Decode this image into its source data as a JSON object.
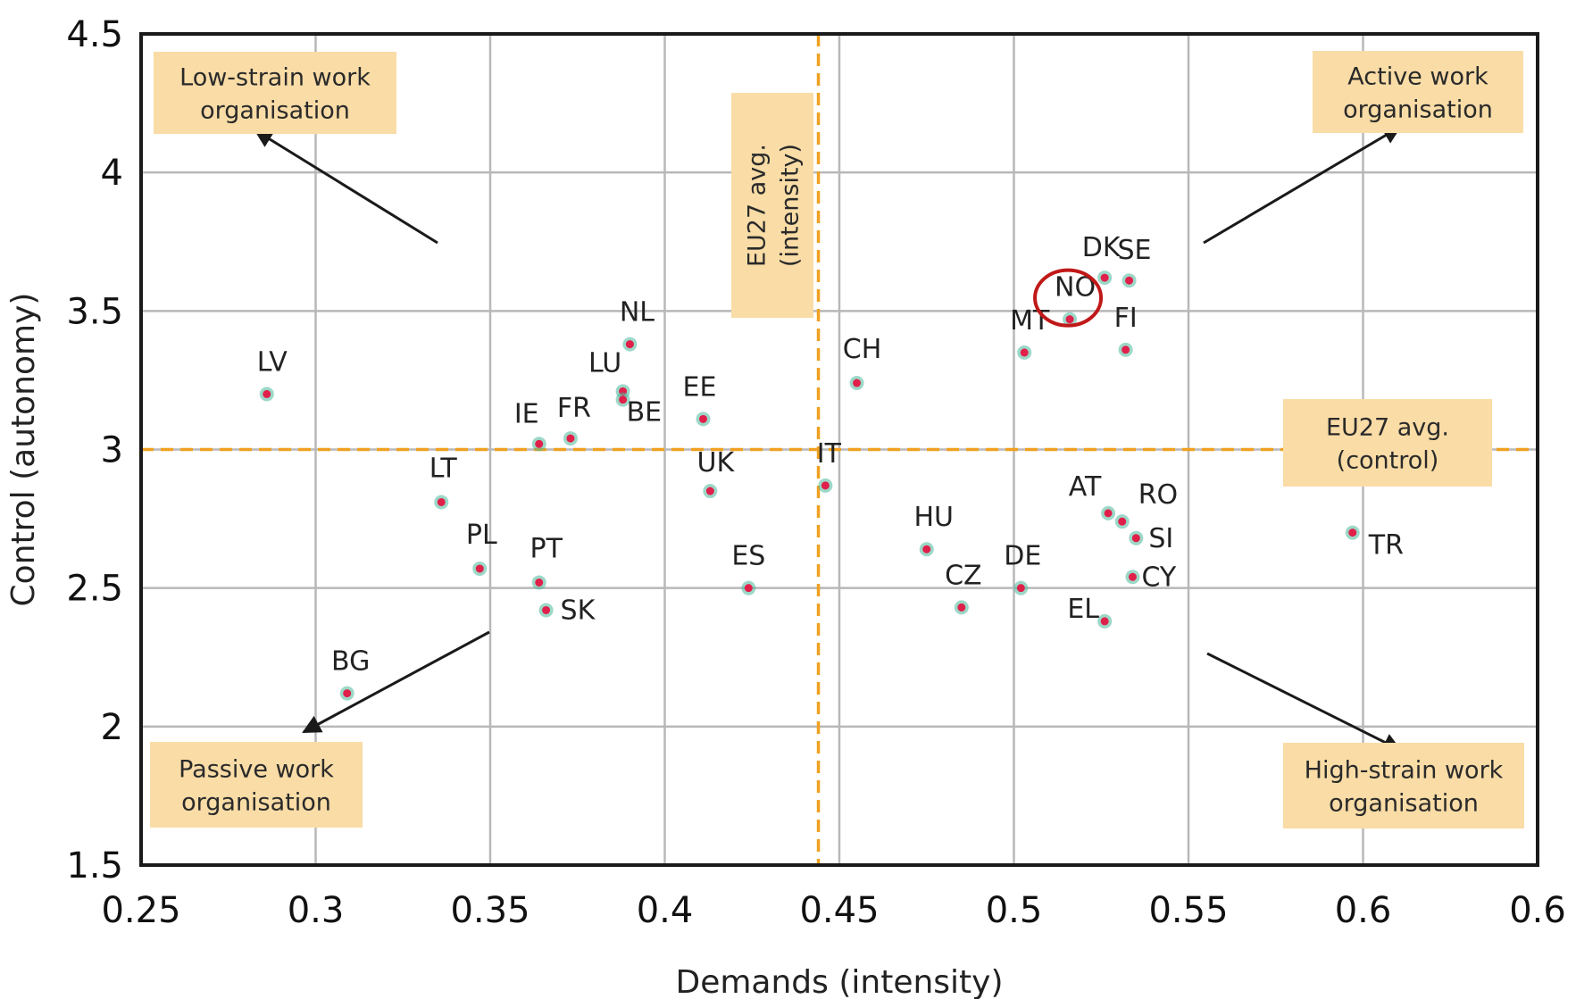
{
  "chart_data": {
    "type": "scatter",
    "xlabel": "Demands (intensity)",
    "ylabel": "Control (autonomy)",
    "xlim": [
      0.25,
      0.65
    ],
    "ylim": [
      1.5,
      4.5
    ],
    "x_ticks": [
      "0.25",
      "0.3",
      "0.35",
      "0.4",
      "0.45",
      "0.5",
      "0.55",
      "0.6",
      "0.6"
    ],
    "y_ticks": [
      "1.5",
      "2",
      "2.5",
      "3",
      "3.5",
      "4",
      "4.5"
    ],
    "grid": true,
    "points": [
      {
        "label": "LV",
        "x": 0.286,
        "y": 3.2
      },
      {
        "label": "BG",
        "x": 0.309,
        "y": 2.12
      },
      {
        "label": "LT",
        "x": 0.336,
        "y": 2.81
      },
      {
        "label": "PL",
        "x": 0.347,
        "y": 2.57
      },
      {
        "label": "IE",
        "x": 0.364,
        "y": 3.02
      },
      {
        "label": "PT",
        "x": 0.364,
        "y": 2.52
      },
      {
        "label": "SK",
        "x": 0.366,
        "y": 2.42
      },
      {
        "label": "FR",
        "x": 0.373,
        "y": 3.04
      },
      {
        "label": "LU",
        "x": 0.388,
        "y": 3.21
      },
      {
        "label": "BE",
        "x": 0.388,
        "y": 3.18
      },
      {
        "label": "NL",
        "x": 0.39,
        "y": 3.38
      },
      {
        "label": "EE",
        "x": 0.411,
        "y": 3.11
      },
      {
        "label": "UK",
        "x": 0.413,
        "y": 2.85
      },
      {
        "label": "ES",
        "x": 0.424,
        "y": 2.5
      },
      {
        "label": "IT",
        "x": 0.446,
        "y": 2.87
      },
      {
        "label": "CH",
        "x": 0.455,
        "y": 3.24
      },
      {
        "label": "HU",
        "x": 0.475,
        "y": 2.64
      },
      {
        "label": "CZ",
        "x": 0.485,
        "y": 2.43
      },
      {
        "label": "DE",
        "x": 0.502,
        "y": 2.5
      },
      {
        "label": "MT",
        "x": 0.503,
        "y": 3.35
      },
      {
        "label": "NO",
        "x": 0.516,
        "y": 3.47
      },
      {
        "label": "DK",
        "x": 0.526,
        "y": 3.62
      },
      {
        "label": "SE",
        "x": 0.533,
        "y": 3.61
      },
      {
        "label": "FI",
        "x": 0.532,
        "y": 3.36
      },
      {
        "label": "AT",
        "x": 0.527,
        "y": 2.77
      },
      {
        "label": "RO",
        "x": 0.531,
        "y": 2.74
      },
      {
        "label": "SI",
        "x": 0.535,
        "y": 2.68
      },
      {
        "label": "CY",
        "x": 0.534,
        "y": 2.54
      },
      {
        "label": "EL",
        "x": 0.526,
        "y": 2.38
      },
      {
        "label": "TR",
        "x": 0.597,
        "y": 2.7
      }
    ],
    "highlighted_point": "NO",
    "reference_lines": [
      {
        "axis": "x",
        "value": 0.444,
        "label_lines": [
          "EU27 avg.",
          "(intensity)"
        ]
      },
      {
        "axis": "y",
        "value": 3.0,
        "label_lines": [
          "EU27 avg.",
          "(control)"
        ]
      }
    ],
    "annotations": [
      {
        "id": "low-strain",
        "lines": [
          "Low-strain work",
          "organisation"
        ]
      },
      {
        "id": "active",
        "lines": [
          "Active work",
          "organisation"
        ]
      },
      {
        "id": "passive",
        "lines": [
          "Passive work",
          "organisation"
        ]
      },
      {
        "id": "high-strain",
        "lines": [
          "High-strain work",
          "organisation"
        ]
      }
    ]
  },
  "colors": {
    "grid": "#b8b8b8",
    "axis": "#1a1a1a",
    "reference_line": "#f0a020",
    "note_box": "#f9dca6",
    "marker_center": "#e0204a",
    "marker_halo": "#4bb89a",
    "highlight_circle": "#c01818",
    "arrow": "#1a1a1a"
  }
}
